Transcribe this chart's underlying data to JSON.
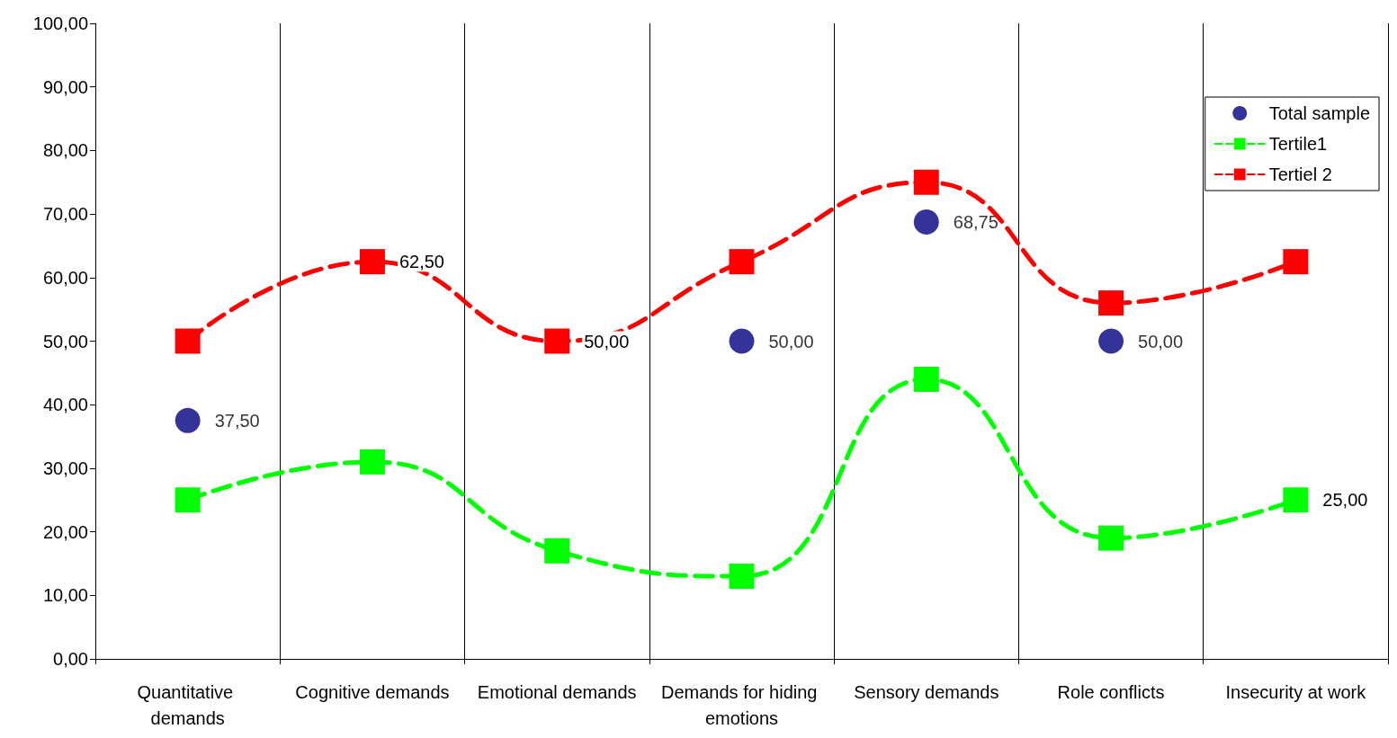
{
  "chart_data": {
    "type": "line",
    "categories": [
      "Quantitative demands",
      "Cognitive demands",
      "Emotional demands",
      "Demands for hiding emotions",
      "Sensory demands",
      "Role conflicts",
      "Insecurity at work"
    ],
    "series": [
      {
        "name": "Total sample",
        "type": "scatter",
        "marker": "circle",
        "color": "#000080",
        "values": [
          37.5,
          null,
          null,
          50,
          68.75,
          50,
          null
        ],
        "value_labels": [
          "37,50",
          null,
          null,
          "50,00",
          "68,75",
          "50,00",
          null
        ]
      },
      {
        "name": "Tertile1",
        "marker": "square",
        "line_style": "dashed",
        "color": "#00ff00",
        "values": [
          25,
          31,
          17,
          13,
          44,
          19,
          25
        ],
        "value_labels": [
          null,
          null,
          null,
          null,
          null,
          null,
          "25,00"
        ]
      },
      {
        "name": "Tertiel 2",
        "marker": "square",
        "line_style": "dashed",
        "color": "#ff0000",
        "values": [
          50,
          62.5,
          50,
          62.5,
          75,
          56,
          62.5
        ],
        "value_labels": [
          null,
          "62,50",
          "50,00",
          null,
          null,
          null,
          null
        ]
      }
    ],
    "ylim": [
      0,
      100
    ],
    "yticks": [
      {
        "value": 0,
        "label": "0,00"
      },
      {
        "value": 10,
        "label": "10,00"
      },
      {
        "value": 20,
        "label": "20,00"
      },
      {
        "value": 30,
        "label": "30,00"
      },
      {
        "value": 40,
        "label": "40,00"
      },
      {
        "value": 50,
        "label": "50,00"
      },
      {
        "value": 60,
        "label": "60,00"
      },
      {
        "value": 70,
        "label": "70,00"
      },
      {
        "value": 80,
        "label": "80,00"
      },
      {
        "value": 90,
        "label": "90,00"
      },
      {
        "value": 100,
        "label": "100,00"
      }
    ],
    "grid": "x",
    "legend": "top right"
  }
}
